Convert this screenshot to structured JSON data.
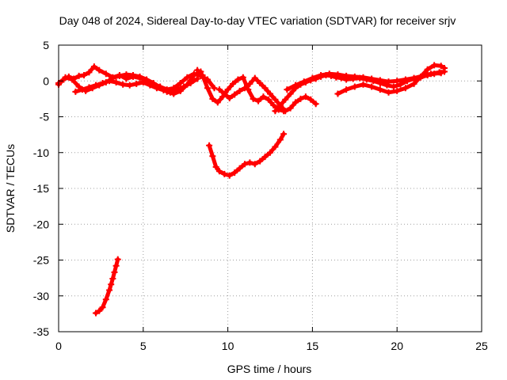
{
  "chart_data": {
    "type": "scatter",
    "title": "Day 048 of 2024, Sidereal Day-to-day VTEC variation (SDTVAR) for receiver srjv",
    "xlabel": "GPS time / hours",
    "ylabel": "SDTVAR / TECUs",
    "xlim": [
      0,
      25
    ],
    "ylim": [
      -35,
      5
    ],
    "xticks": [
      0,
      5,
      10,
      15,
      20,
      25
    ],
    "xtick_labels": [
      "0",
      "5",
      "10",
      "15",
      "20",
      "25"
    ],
    "yticks": [
      5,
      0,
      -5,
      -10,
      -15,
      -20,
      -25,
      -30,
      -35
    ],
    "ytick_labels": [
      "5",
      "0",
      "-5",
      "-10",
      "-15",
      "-20",
      "-25",
      "-30",
      "-35"
    ],
    "grid": true,
    "grid_style": "dotted",
    "marker": "+",
    "series_color": "#ff0000",
    "series": [
      {
        "name": "track-1",
        "x": [
          0.0,
          0.3,
          0.6,
          0.9,
          1.2,
          1.5,
          1.8,
          2.1,
          2.4,
          2.8,
          3.2,
          3.6,
          4.0,
          4.4,
          4.8,
          5.2,
          5.6,
          6.0,
          6.4,
          6.8,
          7.2,
          7.6,
          8.0,
          8.4,
          8.8,
          9.2
        ],
        "y": [
          -0.3,
          0.2,
          0.6,
          0.3,
          0.7,
          0.8,
          1.2,
          2.0,
          1.5,
          1.0,
          0.5,
          0.8,
          0.3,
          0.6,
          0.4,
          0.1,
          -0.4,
          -0.8,
          -1.2,
          -1.0,
          -0.3,
          0.5,
          1.0,
          0.7,
          0.2,
          -1.0
        ]
      },
      {
        "name": "track-2",
        "x": [
          0.0,
          0.4,
          0.8,
          1.2,
          1.6,
          2.0,
          2.4,
          2.8,
          3.2,
          3.6,
          4.0,
          4.4,
          4.8,
          5.2,
          5.6,
          6.0,
          6.4,
          6.8,
          7.2,
          7.6,
          8.0,
          8.4
        ],
        "y": [
          -0.5,
          0.5,
          0.2,
          -0.8,
          -1.4,
          -1.0,
          -0.6,
          -0.2,
          0.4,
          0.7,
          0.9,
          0.8,
          0.6,
          0.2,
          -0.3,
          -0.9,
          -1.5,
          -1.8,
          -1.4,
          -0.5,
          0.8,
          1.3
        ]
      },
      {
        "name": "track-3",
        "x": [
          1.0,
          1.4,
          1.8,
          2.2,
          2.6,
          3.0,
          3.4,
          3.8,
          4.2,
          4.6,
          5.0,
          5.4,
          5.8,
          6.2,
          6.6,
          7.0,
          7.4,
          7.8,
          8.2
        ],
        "y": [
          -1.5,
          -1.2,
          -0.9,
          -0.6,
          -0.3,
          0.0,
          -0.2,
          -0.5,
          -0.6,
          -0.4,
          -0.2,
          -0.6,
          -1.0,
          -1.3,
          -1.6,
          -1.2,
          -0.8,
          -0.3,
          0.3
        ]
      },
      {
        "name": "track-4",
        "x": [
          8.2,
          8.5,
          8.8,
          9.1,
          9.4,
          9.7,
          10.0,
          10.3,
          10.6,
          10.9,
          11.2,
          11.5,
          11.8,
          12.1,
          12.4,
          12.7,
          13.0,
          13.3
        ],
        "y": [
          1.5,
          0.8,
          -1.0,
          -2.5,
          -3.0,
          -2.2,
          -1.2,
          -0.4,
          0.2,
          0.5,
          -1.2,
          -2.5,
          -2.8,
          -2.2,
          -2.6,
          -3.4,
          -4.0,
          -4.2
        ]
      },
      {
        "name": "track-5",
        "x": [
          9.5,
          9.8,
          10.1,
          10.4,
          10.7,
          11.0,
          11.3,
          11.6,
          11.9,
          12.2,
          12.5,
          12.8,
          13.1,
          13.4,
          13.7,
          14.0,
          14.3,
          14.6,
          14.9,
          15.2
        ],
        "y": [
          -1.2,
          -1.8,
          -2.4,
          -1.9,
          -1.4,
          -1.0,
          -0.4,
          0.4,
          -0.3,
          -1.0,
          -1.8,
          -2.6,
          -3.4,
          -4.2,
          -3.8,
          -3.0,
          -2.5,
          -2.2,
          -2.6,
          -3.2
        ]
      },
      {
        "name": "track-6",
        "x": [
          12.8,
          13.1,
          13.4,
          13.7,
          14.0,
          14.3,
          14.6,
          14.9,
          15.2,
          15.5,
          15.8,
          16.1,
          16.4,
          16.7,
          17.0,
          17.4,
          17.8,
          18.2,
          18.6,
          19.0,
          19.4,
          19.8,
          20.2,
          20.6,
          21.0,
          21.4,
          21.8,
          22.2,
          22.6
        ],
        "y": [
          -4.2,
          -3.4,
          -2.6,
          -1.8,
          -1.0,
          -0.5,
          -0.2,
          0.1,
          0.3,
          0.6,
          0.8,
          0.7,
          0.5,
          0.4,
          0.2,
          0.3,
          0.4,
          0.2,
          0.0,
          -0.3,
          -0.6,
          -0.8,
          -0.5,
          0.0,
          0.3,
          0.5,
          0.8,
          1.0,
          1.1
        ]
      },
      {
        "name": "track-7",
        "x": [
          13.5,
          14.0,
          14.5,
          15.0,
          15.5,
          16.0,
          16.5,
          17.0,
          17.5,
          18.0,
          18.5,
          19.0,
          19.5,
          20.0,
          20.5,
          21.0,
          21.5,
          22.0,
          22.5,
          22.8
        ],
        "y": [
          -1.2,
          -0.6,
          -0.1,
          0.4,
          0.8,
          1.0,
          0.9,
          0.7,
          0.6,
          0.5,
          0.3,
          0.1,
          -0.1,
          0.0,
          0.2,
          0.4,
          0.7,
          1.0,
          1.2,
          1.3
        ]
      },
      {
        "name": "track-8",
        "x": [
          16.5,
          17.0,
          17.5,
          18.0,
          18.5,
          19.0,
          19.5,
          20.0,
          20.5,
          21.0,
          21.4,
          21.8,
          22.2,
          22.6,
          22.8
        ],
        "y": [
          -1.8,
          -1.2,
          -0.8,
          -0.5,
          -0.8,
          -1.2,
          -1.6,
          -1.4,
          -1.0,
          -0.4,
          0.6,
          1.6,
          2.2,
          2.1,
          1.8
        ]
      },
      {
        "name": "track-9",
        "x": [
          8.9,
          9.1,
          9.3,
          9.5,
          9.8,
          10.1,
          10.4,
          10.7,
          11.0,
          11.3,
          11.6,
          11.9,
          12.2,
          12.5,
          12.8,
          13.1,
          13.3
        ],
        "y": [
          -9.0,
          -10.5,
          -12.0,
          -12.6,
          -13.0,
          -13.2,
          -12.8,
          -12.2,
          -11.6,
          -11.4,
          -11.6,
          -11.2,
          -10.6,
          -10.0,
          -9.2,
          -8.2,
          -7.4
        ]
      },
      {
        "name": "track-10",
        "x": [
          2.2,
          2.4,
          2.6,
          2.8,
          3.0,
          3.1,
          3.2,
          3.3,
          3.4,
          3.5
        ],
        "y": [
          -32.4,
          -32.1,
          -31.6,
          -30.5,
          -29.2,
          -28.4,
          -27.6,
          -26.7,
          -25.8,
          -24.9
        ]
      }
    ]
  }
}
